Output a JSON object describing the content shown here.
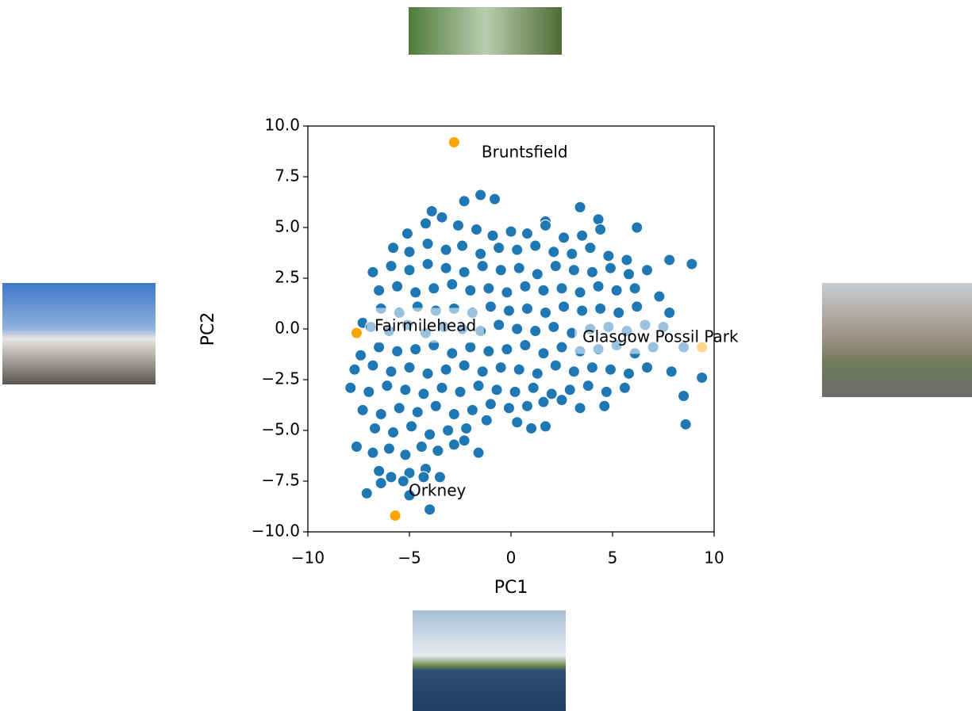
{
  "chart_data": {
    "type": "scatter",
    "xlabel": "PC1",
    "ylabel": "PC2",
    "xlim": [
      -10,
      10
    ],
    "ylim": [
      -10,
      10
    ],
    "xticks": [
      {
        "value": -10,
        "label": "−10"
      },
      {
        "value": -5,
        "label": "−5"
      },
      0,
      5,
      10
    ],
    "yticks": [
      {
        "value": -10,
        "label": "−10.0"
      },
      {
        "value": -7.5,
        "label": "−7.5"
      },
      {
        "value": -5,
        "label": "−5.0"
      },
      {
        "value": -2.5,
        "label": "−2.5"
      },
      {
        "value": 0,
        "label": "0.0"
      },
      {
        "value": 2.5,
        "label": "2.5"
      },
      {
        "value": 5,
        "label": "5.0"
      },
      {
        "value": 7.5,
        "label": "7.5"
      },
      {
        "value": 10,
        "label": "10.0"
      }
    ],
    "series": [
      {
        "color": "#1f77b4",
        "x": [
          -3.9,
          -2.3,
          -1.5,
          -0.8,
          1.7,
          3.4,
          4.3,
          -5.1,
          -4.2,
          -3.4,
          -2.6,
          -1.7,
          -0.9,
          0.0,
          0.8,
          1.7,
          2.6,
          3.5,
          4.4,
          6.2,
          -5.8,
          -5.0,
          -4.1,
          -3.2,
          -2.4,
          -1.5,
          -0.6,
          0.3,
          1.2,
          2.1,
          3.0,
          3.9,
          4.8,
          5.7,
          -6.8,
          -5.9,
          -5.0,
          -4.1,
          -3.2,
          -2.3,
          -1.4,
          -0.5,
          0.4,
          1.3,
          2.2,
          3.1,
          4.0,
          4.9,
          5.8,
          6.7,
          7.8,
          8.9,
          -6.5,
          -5.6,
          -4.7,
          -3.8,
          -2.9,
          -2.0,
          -1.1,
          -0.2,
          0.7,
          1.6,
          2.5,
          3.4,
          4.3,
          5.2,
          6.1,
          7.3,
          -7.3,
          -6.4,
          -5.5,
          -4.6,
          -3.7,
          -2.8,
          -1.9,
          -1.0,
          -0.1,
          0.8,
          1.7,
          2.6,
          3.5,
          4.4,
          5.3,
          6.2,
          7.8,
          -6.9,
          -6.0,
          -5.1,
          -4.2,
          -3.3,
          -2.4,
          -1.5,
          -0.6,
          0.3,
          1.2,
          2.1,
          3.0,
          3.9,
          4.8,
          5.7,
          6.6,
          7.5,
          -7.4,
          -6.5,
          -5.6,
          -4.7,
          -3.8,
          -2.9,
          -2.0,
          -1.1,
          -0.2,
          0.7,
          1.6,
          2.5,
          3.4,
          4.3,
          5.2,
          6.1,
          7.0,
          8.5,
          -7.7,
          -6.8,
          -5.9,
          -5.0,
          -4.1,
          -3.2,
          -2.3,
          -1.4,
          -0.5,
          0.4,
          1.3,
          2.2,
          3.1,
          4.0,
          4.9,
          5.8,
          6.7,
          7.9,
          -7.9,
          -7.0,
          -6.1,
          -5.2,
          -4.3,
          -3.4,
          -2.5,
          -1.6,
          -0.7,
          0.2,
          1.1,
          2.0,
          2.9,
          3.8,
          4.7,
          5.6,
          8.5,
          9.4,
          -7.3,
          -6.4,
          -5.5,
          -4.6,
          -3.7,
          -2.8,
          -1.9,
          -1.0,
          -0.1,
          0.8,
          1.6,
          2.5,
          3.4,
          4.6,
          -6.7,
          -5.8,
          -4.9,
          -4.0,
          -3.1,
          -2.2,
          -1.2,
          0.3,
          1.0,
          1.7,
          8.6,
          -7.6,
          -6.8,
          -6.0,
          -5.2,
          -4.4,
          -3.6,
          -2.8,
          -2.3,
          -1.6,
          -6.5,
          -5.9,
          -5.0,
          -4.2,
          -3.5,
          -6.4,
          -5.3,
          -7.1,
          -5.0,
          -4.0,
          -4.3
        ],
        "y": [
          5.8,
          6.3,
          6.6,
          6.4,
          5.3,
          6.0,
          5.4,
          4.7,
          5.2,
          5.5,
          5.1,
          4.9,
          4.6,
          4.8,
          4.7,
          5.1,
          4.5,
          4.6,
          4.9,
          5.0,
          4.0,
          3.8,
          4.2,
          3.9,
          4.1,
          3.7,
          4.0,
          3.9,
          4.1,
          3.8,
          3.7,
          4.0,
          3.6,
          3.4,
          2.8,
          3.1,
          2.9,
          3.2,
          3.0,
          2.8,
          3.1,
          2.9,
          3.0,
          2.7,
          3.1,
          2.9,
          2.8,
          3.0,
          2.7,
          2.9,
          3.4,
          3.2,
          1.9,
          2.1,
          1.8,
          2.0,
          2.2,
          1.9,
          2.0,
          1.8,
          2.1,
          1.9,
          2.0,
          1.8,
          2.1,
          1.9,
          2.0,
          1.6,
          0.3,
          1.0,
          0.8,
          1.1,
          0.9,
          1.0,
          0.8,
          1.1,
          0.9,
          1.0,
          0.8,
          1.1,
          0.9,
          1.0,
          0.8,
          1.1,
          0.8,
          0.1,
          -0.1,
          0.2,
          -0.2,
          0.1,
          0.0,
          -0.1,
          0.2,
          0.0,
          -0.1,
          0.1,
          -0.2,
          0.0,
          0.1,
          -0.1,
          0.2,
          0.1,
          -1.3,
          -0.9,
          -1.1,
          -1.0,
          -0.8,
          -1.2,
          -0.9,
          -1.1,
          -1.0,
          -0.8,
          -1.2,
          -0.9,
          -1.1,
          -1.0,
          -0.8,
          -1.2,
          -0.9,
          -0.9,
          -2.0,
          -1.8,
          -2.1,
          -1.9,
          -2.2,
          -2.0,
          -1.8,
          -2.1,
          -1.9,
          -2.0,
          -2.2,
          -1.8,
          -2.1,
          -1.9,
          -2.0,
          -2.2,
          -1.9,
          -2.1,
          -2.9,
          -3.1,
          -2.8,
          -3.0,
          -3.2,
          -2.9,
          -3.1,
          -2.8,
          -3.0,
          -3.1,
          -2.9,
          -3.2,
          -3.0,
          -2.8,
          -3.1,
          -2.9,
          -3.3,
          -2.4,
          -4.0,
          -4.2,
          -3.9,
          -4.1,
          -3.8,
          -4.2,
          -4.0,
          -3.7,
          -3.9,
          -3.8,
          -3.6,
          -3.5,
          -3.9,
          -3.8,
          -4.9,
          -5.1,
          -4.8,
          -5.2,
          -5.0,
          -4.9,
          -4.5,
          -4.6,
          -4.9,
          -4.8,
          -4.7,
          -5.8,
          -6.1,
          -5.9,
          -6.2,
          -5.8,
          -6.0,
          -5.7,
          -5.5,
          -6.1,
          -7.0,
          -7.3,
          -7.1,
          -6.9,
          -7.3,
          -7.6,
          -7.5,
          -8.1,
          -8.2,
          -8.9,
          -7.3
        ]
      },
      {
        "color": "#ffa500",
        "x": [
          -2.8,
          -7.6,
          9.4,
          -5.7
        ],
        "y": [
          9.2,
          -0.2,
          -0.9,
          -9.2
        ]
      }
    ],
    "annotations": [
      {
        "text": "Bruntsfield",
        "x": -1.45,
        "y": 8.67,
        "bbox": false
      },
      {
        "text": "Fairmilehead",
        "x": -6.72,
        "y": 0.12,
        "bbox": true
      },
      {
        "text": "Glasgow Possil Park",
        "x": 3.52,
        "y": -0.43,
        "bbox": true
      },
      {
        "text": "Orkney",
        "x": -5.04,
        "y": -8.0,
        "bbox": false
      }
    ]
  }
}
